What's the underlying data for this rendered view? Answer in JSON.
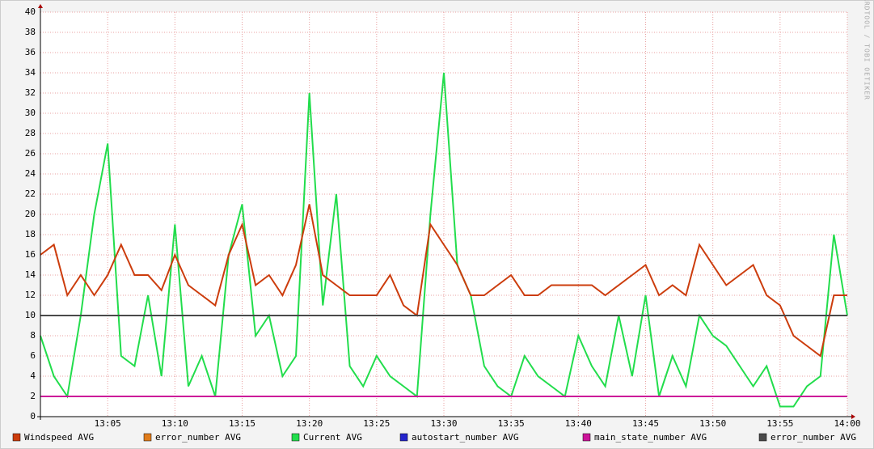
{
  "chart_data": {
    "type": "line",
    "watermark": "RRDTOOL / TOBI OETIKER",
    "x": [
      "13:00",
      "13:01",
      "13:02",
      "13:03",
      "13:04",
      "13:05",
      "13:06",
      "13:07",
      "13:08",
      "13:09",
      "13:10",
      "13:11",
      "13:12",
      "13:13",
      "13:14",
      "13:15",
      "13:16",
      "13:17",
      "13:18",
      "13:19",
      "13:20",
      "13:21",
      "13:22",
      "13:23",
      "13:24",
      "13:25",
      "13:26",
      "13:27",
      "13:28",
      "13:29",
      "13:30",
      "13:31",
      "13:32",
      "13:33",
      "13:34",
      "13:35",
      "13:36",
      "13:37",
      "13:38",
      "13:39",
      "13:40",
      "13:41",
      "13:42",
      "13:43",
      "13:44",
      "13:45",
      "13:46",
      "13:47",
      "13:48",
      "13:49",
      "13:50",
      "13:51",
      "13:52",
      "13:53",
      "13:54",
      "13:55",
      "13:56",
      "13:57",
      "13:58",
      "13:59",
      "14:00"
    ],
    "xlim": [
      "13:00",
      "14:00"
    ],
    "xticks": [
      "13:05",
      "13:10",
      "13:15",
      "13:20",
      "13:25",
      "13:30",
      "13:35",
      "13:40",
      "13:45",
      "13:50",
      "13:55",
      "14:00"
    ],
    "ylim": [
      0,
      40
    ],
    "yticks": [
      0,
      2,
      4,
      6,
      8,
      10,
      12,
      14,
      16,
      18,
      20,
      22,
      24,
      26,
      28,
      30,
      32,
      34,
      36,
      38,
      40
    ],
    "grid": true,
    "series": [
      {
        "name": "Windspeed AVG",
        "color": "#cc3c0c",
        "values": [
          16,
          17,
          12,
          14,
          12,
          14,
          17,
          14,
          14,
          12.5,
          16,
          13,
          12,
          11,
          16,
          19,
          13,
          14,
          12,
          15,
          21,
          14,
          13,
          12,
          12,
          12,
          14,
          11,
          10,
          19,
          17,
          15,
          12,
          12,
          13,
          14,
          12,
          12,
          13,
          13,
          13,
          13,
          12,
          13,
          14,
          15,
          12,
          13,
          12,
          17,
          15,
          13,
          14,
          15,
          12,
          11,
          8,
          7,
          6,
          12,
          12
        ]
      },
      {
        "name": "error_number AVG",
        "color": "#e07c1c",
        "values": [
          null,
          null,
          null,
          null,
          null,
          null,
          null,
          null,
          null,
          null,
          null,
          null,
          null,
          null,
          null,
          null,
          null,
          null,
          null,
          null,
          null,
          null,
          null,
          null,
          null,
          null,
          null,
          null,
          null,
          null,
          null,
          null,
          null,
          null,
          null,
          null,
          null,
          null,
          null,
          null,
          null,
          null,
          null,
          null,
          null,
          null,
          null,
          null,
          null,
          null,
          null,
          null,
          null,
          null,
          null,
          null,
          null,
          null,
          null,
          null,
          null
        ]
      },
      {
        "name": "Current AVG",
        "color": "#22dd4c",
        "values": [
          8,
          4,
          2,
          10,
          20,
          27,
          6,
          5,
          12,
          4,
          19,
          3,
          6,
          2,
          16,
          21,
          8,
          10,
          4,
          6,
          32,
          11,
          22,
          5,
          3,
          6,
          4,
          3,
          2,
          20,
          34,
          15,
          12,
          5,
          3,
          2,
          6,
          4,
          3,
          2,
          8,
          5,
          3,
          10,
          4,
          12,
          2,
          6,
          3,
          10,
          8,
          7,
          5,
          3,
          5,
          1,
          1,
          3,
          4,
          18,
          10
        ]
      },
      {
        "name": "autostart_number AVG",
        "color": "#2424cc",
        "values": [
          null,
          null,
          null,
          null,
          null,
          null,
          null,
          null,
          null,
          null,
          null,
          null,
          null,
          null,
          null,
          null,
          null,
          null,
          null,
          null,
          null,
          null,
          null,
          null,
          null,
          null,
          null,
          null,
          null,
          null,
          null,
          null,
          null,
          null,
          null,
          null,
          null,
          null,
          null,
          null,
          null,
          null,
          null,
          null,
          null,
          null,
          null,
          null,
          null,
          null,
          null,
          null,
          null,
          null,
          null,
          null,
          null,
          null,
          null,
          null,
          null
        ]
      },
      {
        "name": "main_state_number AVG",
        "color": "#cc1499",
        "values": [
          2,
          2,
          2,
          2,
          2,
          2,
          2,
          2,
          2,
          2,
          2,
          2,
          2,
          2,
          2,
          2,
          2,
          2,
          2,
          2,
          2,
          2,
          2,
          2,
          2,
          2,
          2,
          2,
          2,
          2,
          2,
          2,
          2,
          2,
          2,
          2,
          2,
          2,
          2,
          2,
          2,
          2,
          2,
          2,
          2,
          2,
          2,
          2,
          2,
          2,
          2,
          2,
          2,
          2,
          2,
          2,
          2,
          2,
          2,
          2,
          2
        ]
      },
      {
        "name": "error_number AVG",
        "color": "#4a4a4a",
        "values": [
          10,
          10,
          10,
          10,
          10,
          10,
          10,
          10,
          10,
          10,
          10,
          10,
          10,
          10,
          10,
          10,
          10,
          10,
          10,
          10,
          10,
          10,
          10,
          10,
          10,
          10,
          10,
          10,
          10,
          10,
          10,
          10,
          10,
          10,
          10,
          10,
          10,
          10,
          10,
          10,
          10,
          10,
          10,
          10,
          10,
          10,
          10,
          10,
          10,
          10,
          10,
          10,
          10,
          10,
          10,
          10,
          10,
          10,
          10,
          10,
          10
        ]
      }
    ]
  }
}
